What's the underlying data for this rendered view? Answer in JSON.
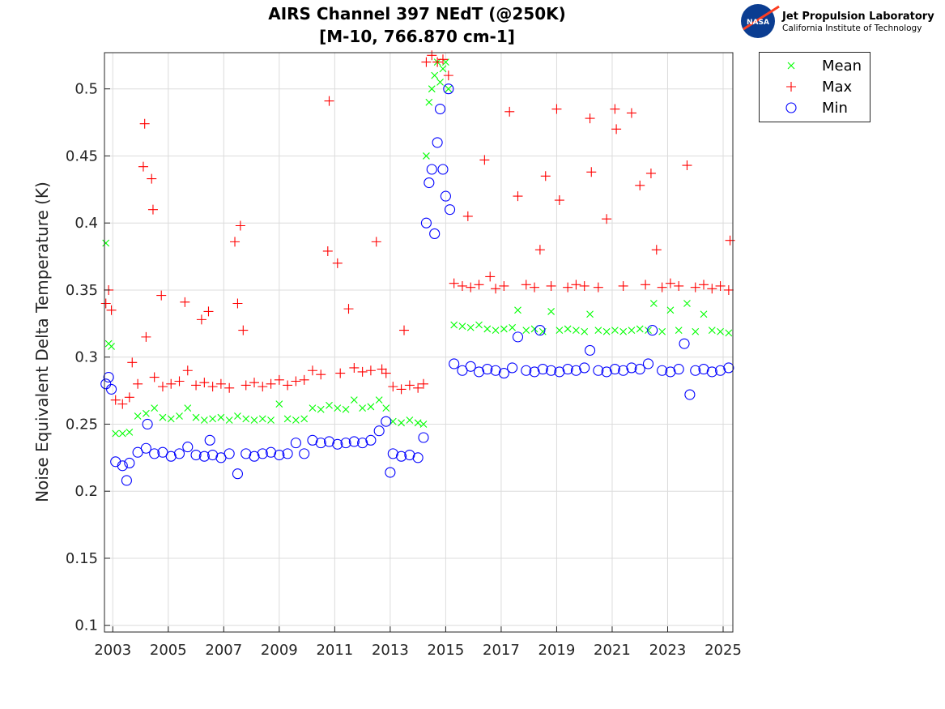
{
  "logo": {
    "org": "Jet Propulsion Laboratory",
    "sub": "California Institute of Technology",
    "badge": "NASA"
  },
  "chart_data": {
    "type": "scatter",
    "title": "AIRS Channel 397 NEdT (@250K)",
    "subtitle": "[M-10, 766.870 cm-1]",
    "xlabel": "",
    "ylabel": "Noise Equivalent Delta Temperature (K)",
    "xlim": [
      2002.7,
      2025.35
    ],
    "ylim": [
      0.095,
      0.527
    ],
    "xticks": [
      "2003",
      "2005",
      "2007",
      "2009",
      "2011",
      "2013",
      "2015",
      "2017",
      "2019",
      "2021",
      "2023",
      "2025"
    ],
    "yticks": [
      "0.1",
      "0.15",
      "0.2",
      "0.25",
      "0.3",
      "0.35",
      "0.4",
      "0.45",
      "0.5"
    ],
    "grid": true,
    "legend_position": "outside-top-right",
    "series": [
      {
        "name": "Mean",
        "marker": "x",
        "color": "#00ff00",
        "points": [
          [
            2002.75,
            0.385
          ],
          [
            2002.85,
            0.31
          ],
          [
            2002.95,
            0.308
          ],
          [
            2003.1,
            0.243
          ],
          [
            2003.35,
            0.243
          ],
          [
            2003.6,
            0.244
          ],
          [
            2003.9,
            0.256
          ],
          [
            2004.2,
            0.258
          ],
          [
            2004.5,
            0.262
          ],
          [
            2004.8,
            0.255
          ],
          [
            2005.1,
            0.254
          ],
          [
            2005.4,
            0.256
          ],
          [
            2005.7,
            0.262
          ],
          [
            2006.0,
            0.255
          ],
          [
            2006.3,
            0.253
          ],
          [
            2006.6,
            0.254
          ],
          [
            2006.9,
            0.255
          ],
          [
            2007.2,
            0.253
          ],
          [
            2007.5,
            0.256
          ],
          [
            2007.8,
            0.254
          ],
          [
            2008.1,
            0.253
          ],
          [
            2008.4,
            0.254
          ],
          [
            2008.7,
            0.253
          ],
          [
            2009.0,
            0.265
          ],
          [
            2009.3,
            0.254
          ],
          [
            2009.6,
            0.253
          ],
          [
            2009.9,
            0.254
          ],
          [
            2010.2,
            0.262
          ],
          [
            2010.5,
            0.261
          ],
          [
            2010.8,
            0.264
          ],
          [
            2011.1,
            0.262
          ],
          [
            2011.4,
            0.261
          ],
          [
            2011.7,
            0.268
          ],
          [
            2012.0,
            0.262
          ],
          [
            2012.3,
            0.263
          ],
          [
            2012.6,
            0.268
          ],
          [
            2012.85,
            0.262
          ],
          [
            2013.1,
            0.252
          ],
          [
            2013.4,
            0.251
          ],
          [
            2013.7,
            0.253
          ],
          [
            2014.0,
            0.251
          ],
          [
            2014.2,
            0.25
          ],
          [
            2014.3,
            0.45
          ],
          [
            2014.4,
            0.49
          ],
          [
            2014.5,
            0.5
          ],
          [
            2014.6,
            0.51
          ],
          [
            2014.7,
            0.52
          ],
          [
            2014.8,
            0.505
          ],
          [
            2014.9,
            0.515
          ],
          [
            2015.0,
            0.52
          ],
          [
            2015.1,
            0.5
          ],
          [
            2015.3,
            0.324
          ],
          [
            2015.6,
            0.323
          ],
          [
            2015.9,
            0.322
          ],
          [
            2016.2,
            0.324
          ],
          [
            2016.5,
            0.321
          ],
          [
            2016.8,
            0.32
          ],
          [
            2017.1,
            0.321
          ],
          [
            2017.4,
            0.322
          ],
          [
            2017.6,
            0.335
          ],
          [
            2017.9,
            0.32
          ],
          [
            2018.2,
            0.321
          ],
          [
            2018.5,
            0.319
          ],
          [
            2018.8,
            0.334
          ],
          [
            2019.1,
            0.32
          ],
          [
            2019.4,
            0.321
          ],
          [
            2019.7,
            0.32
          ],
          [
            2020.0,
            0.319
          ],
          [
            2020.2,
            0.332
          ],
          [
            2020.5,
            0.32
          ],
          [
            2020.8,
            0.319
          ],
          [
            2021.1,
            0.32
          ],
          [
            2021.4,
            0.319
          ],
          [
            2021.7,
            0.32
          ],
          [
            2022.0,
            0.321
          ],
          [
            2022.3,
            0.32
          ],
          [
            2022.5,
            0.34
          ],
          [
            2022.8,
            0.319
          ],
          [
            2023.1,
            0.335
          ],
          [
            2023.4,
            0.32
          ],
          [
            2023.7,
            0.34
          ],
          [
            2024.0,
            0.319
          ],
          [
            2024.3,
            0.332
          ],
          [
            2024.6,
            0.32
          ],
          [
            2024.9,
            0.319
          ],
          [
            2025.2,
            0.318
          ]
        ]
      },
      {
        "name": "Max",
        "marker": "+",
        "color": "#ff0000",
        "points": [
          [
            2002.75,
            0.34
          ],
          [
            2002.85,
            0.35
          ],
          [
            2002.95,
            0.335
          ],
          [
            2003.1,
            0.268
          ],
          [
            2003.35,
            0.265
          ],
          [
            2003.6,
            0.27
          ],
          [
            2003.7,
            0.296
          ],
          [
            2003.9,
            0.28
          ],
          [
            2004.1,
            0.442
          ],
          [
            2004.15,
            0.474
          ],
          [
            2004.2,
            0.315
          ],
          [
            2004.4,
            0.433
          ],
          [
            2004.45,
            0.41
          ],
          [
            2004.5,
            0.285
          ],
          [
            2004.8,
            0.278
          ],
          [
            2004.75,
            0.346
          ],
          [
            2005.1,
            0.28
          ],
          [
            2005.4,
            0.282
          ],
          [
            2005.6,
            0.341
          ],
          [
            2005.7,
            0.29
          ],
          [
            2006.0,
            0.279
          ],
          [
            2006.2,
            0.328
          ],
          [
            2006.3,
            0.281
          ],
          [
            2006.45,
            0.334
          ],
          [
            2006.6,
            0.278
          ],
          [
            2006.9,
            0.28
          ],
          [
            2007.2,
            0.277
          ],
          [
            2007.4,
            0.386
          ],
          [
            2007.5,
            0.34
          ],
          [
            2007.6,
            0.398
          ],
          [
            2007.7,
            0.32
          ],
          [
            2007.8,
            0.279
          ],
          [
            2008.1,
            0.281
          ],
          [
            2008.4,
            0.278
          ],
          [
            2008.7,
            0.28
          ],
          [
            2009.0,
            0.283
          ],
          [
            2009.3,
            0.279
          ],
          [
            2009.6,
            0.282
          ],
          [
            2009.9,
            0.283
          ],
          [
            2010.2,
            0.29
          ],
          [
            2010.5,
            0.287
          ],
          [
            2010.75,
            0.379
          ],
          [
            2010.8,
            0.491
          ],
          [
            2011.1,
            0.37
          ],
          [
            2011.2,
            0.288
          ],
          [
            2011.5,
            0.336
          ],
          [
            2011.7,
            0.292
          ],
          [
            2012.0,
            0.289
          ],
          [
            2012.3,
            0.29
          ],
          [
            2012.5,
            0.386
          ],
          [
            2012.7,
            0.291
          ],
          [
            2012.85,
            0.288
          ],
          [
            2013.1,
            0.278
          ],
          [
            2013.4,
            0.276
          ],
          [
            2013.5,
            0.32
          ],
          [
            2013.7,
            0.279
          ],
          [
            2014.0,
            0.277
          ],
          [
            2014.2,
            0.28
          ],
          [
            2014.3,
            0.52
          ],
          [
            2014.5,
            0.525
          ],
          [
            2014.7,
            0.52
          ],
          [
            2014.9,
            0.522
          ],
          [
            2015.1,
            0.51
          ],
          [
            2015.3,
            0.355
          ],
          [
            2015.6,
            0.353
          ],
          [
            2015.8,
            0.405
          ],
          [
            2015.9,
            0.352
          ],
          [
            2016.2,
            0.354
          ],
          [
            2016.4,
            0.447
          ],
          [
            2016.6,
            0.36
          ],
          [
            2016.8,
            0.351
          ],
          [
            2017.1,
            0.353
          ],
          [
            2017.3,
            0.483
          ],
          [
            2017.6,
            0.42
          ],
          [
            2017.9,
            0.354
          ],
          [
            2018.2,
            0.352
          ],
          [
            2018.4,
            0.38
          ],
          [
            2018.6,
            0.435
          ],
          [
            2018.8,
            0.353
          ],
          [
            2019.0,
            0.485
          ],
          [
            2019.1,
            0.417
          ],
          [
            2019.4,
            0.352
          ],
          [
            2019.7,
            0.354
          ],
          [
            2020.0,
            0.353
          ],
          [
            2020.2,
            0.478
          ],
          [
            2020.25,
            0.438
          ],
          [
            2020.5,
            0.352
          ],
          [
            2020.8,
            0.403
          ],
          [
            2021.1,
            0.485
          ],
          [
            2021.15,
            0.47
          ],
          [
            2021.4,
            0.353
          ],
          [
            2021.7,
            0.482
          ],
          [
            2022.0,
            0.428
          ],
          [
            2022.2,
            0.354
          ],
          [
            2022.4,
            0.437
          ],
          [
            2022.6,
            0.38
          ],
          [
            2022.8,
            0.352
          ],
          [
            2023.1,
            0.355
          ],
          [
            2023.4,
            0.353
          ],
          [
            2023.7,
            0.443
          ],
          [
            2024.0,
            0.352
          ],
          [
            2024.3,
            0.354
          ],
          [
            2024.6,
            0.351
          ],
          [
            2024.9,
            0.353
          ],
          [
            2025.2,
            0.35
          ],
          [
            2025.25,
            0.387
          ]
        ]
      },
      {
        "name": "Min",
        "marker": "o",
        "color": "#0000ff",
        "points": [
          [
            2002.75,
            0.28
          ],
          [
            2002.85,
            0.285
          ],
          [
            2002.95,
            0.276
          ],
          [
            2003.1,
            0.222
          ],
          [
            2003.35,
            0.219
          ],
          [
            2003.5,
            0.208
          ],
          [
            2003.6,
            0.221
          ],
          [
            2003.9,
            0.229
          ],
          [
            2004.2,
            0.232
          ],
          [
            2004.25,
            0.25
          ],
          [
            2004.5,
            0.228
          ],
          [
            2004.8,
            0.229
          ],
          [
            2005.1,
            0.226
          ],
          [
            2005.4,
            0.228
          ],
          [
            2005.7,
            0.233
          ],
          [
            2006.0,
            0.227
          ],
          [
            2006.3,
            0.226
          ],
          [
            2006.5,
            0.238
          ],
          [
            2006.6,
            0.227
          ],
          [
            2006.9,
            0.225
          ],
          [
            2007.2,
            0.228
          ],
          [
            2007.5,
            0.213
          ],
          [
            2007.8,
            0.228
          ],
          [
            2008.1,
            0.226
          ],
          [
            2008.4,
            0.228
          ],
          [
            2008.7,
            0.229
          ],
          [
            2009.0,
            0.227
          ],
          [
            2009.3,
            0.228
          ],
          [
            2009.6,
            0.236
          ],
          [
            2009.9,
            0.228
          ],
          [
            2010.2,
            0.238
          ],
          [
            2010.5,
            0.236
          ],
          [
            2010.8,
            0.237
          ],
          [
            2011.1,
            0.235
          ],
          [
            2011.4,
            0.236
          ],
          [
            2011.7,
            0.237
          ],
          [
            2012.0,
            0.236
          ],
          [
            2012.3,
            0.238
          ],
          [
            2012.6,
            0.245
          ],
          [
            2012.85,
            0.252
          ],
          [
            2013.0,
            0.214
          ],
          [
            2013.1,
            0.228
          ],
          [
            2013.4,
            0.226
          ],
          [
            2013.7,
            0.227
          ],
          [
            2014.0,
            0.225
          ],
          [
            2014.2,
            0.24
          ],
          [
            2014.3,
            0.4
          ],
          [
            2014.4,
            0.43
          ],
          [
            2014.5,
            0.44
          ],
          [
            2014.6,
            0.392
          ],
          [
            2014.7,
            0.46
          ],
          [
            2014.8,
            0.485
          ],
          [
            2014.9,
            0.44
          ],
          [
            2015.0,
            0.42
          ],
          [
            2015.1,
            0.5
          ],
          [
            2015.15,
            0.41
          ],
          [
            2015.3,
            0.295
          ],
          [
            2015.6,
            0.29
          ],
          [
            2015.9,
            0.293
          ],
          [
            2016.2,
            0.289
          ],
          [
            2016.5,
            0.291
          ],
          [
            2016.8,
            0.29
          ],
          [
            2017.1,
            0.288
          ],
          [
            2017.4,
            0.292
          ],
          [
            2017.6,
            0.315
          ],
          [
            2017.9,
            0.29
          ],
          [
            2018.2,
            0.289
          ],
          [
            2018.4,
            0.32
          ],
          [
            2018.5,
            0.291
          ],
          [
            2018.8,
            0.29
          ],
          [
            2019.1,
            0.289
          ],
          [
            2019.4,
            0.291
          ],
          [
            2019.7,
            0.29
          ],
          [
            2020.0,
            0.292
          ],
          [
            2020.2,
            0.305
          ],
          [
            2020.5,
            0.29
          ],
          [
            2020.8,
            0.289
          ],
          [
            2021.1,
            0.291
          ],
          [
            2021.4,
            0.29
          ],
          [
            2021.7,
            0.292
          ],
          [
            2022.0,
            0.291
          ],
          [
            2022.3,
            0.295
          ],
          [
            2022.45,
            0.32
          ],
          [
            2022.8,
            0.29
          ],
          [
            2023.1,
            0.289
          ],
          [
            2023.4,
            0.291
          ],
          [
            2023.6,
            0.31
          ],
          [
            2023.8,
            0.272
          ],
          [
            2024.0,
            0.29
          ],
          [
            2024.3,
            0.291
          ],
          [
            2024.6,
            0.289
          ],
          [
            2024.9,
            0.29
          ],
          [
            2025.2,
            0.292
          ]
        ]
      }
    ]
  }
}
